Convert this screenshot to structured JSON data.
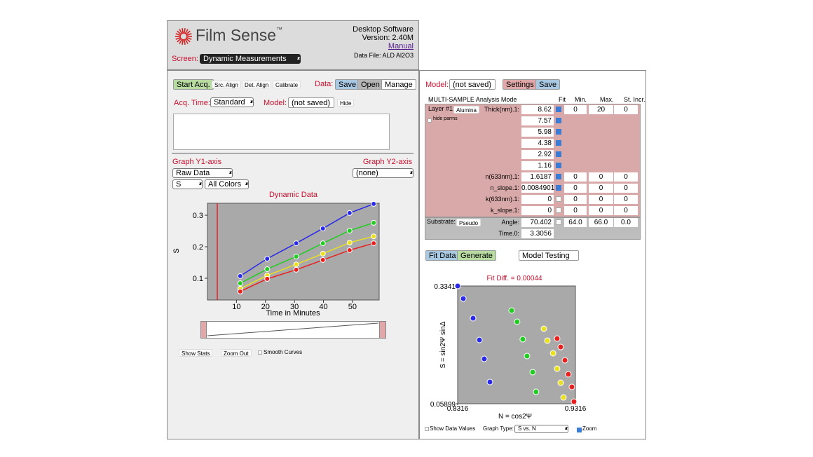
{
  "header": {
    "brand": "Film Sense",
    "trademark": "™",
    "screen_label": "Screen:",
    "screen_value": "Dynamic Measurements",
    "software": "Desktop Software",
    "version": "Version: 2.40M",
    "manual": "Manual",
    "data_file": "Data File: ALD Al2O3"
  },
  "acquisition": {
    "start": "Start Acq.",
    "src_align": "Src. Align",
    "det_align": "Det. Align",
    "calibrate": "Calibrate",
    "data_label": "Data:",
    "save": "Save",
    "open": "Open",
    "manage": "Manage",
    "acq_time_label": "Acq. Time:",
    "acq_time": "Standard",
    "model_label": "Model:",
    "model": "(not saved)",
    "hide": "Hide"
  },
  "graph_controls": {
    "y1_label": "Graph Y1-axis",
    "y2_label": "Graph Y2-axis",
    "y1": "Raw Data",
    "y2": "(none)",
    "quantity": "S",
    "colors": "All Colors"
  },
  "dynamic_chart": {
    "type": "line",
    "title": "Dynamic Data",
    "y_label": "S",
    "x_label": "Time in Minutes",
    "xlim": [
      0,
      59.2
    ],
    "ylim": [
      0.031,
      0.338
    ],
    "xticks": [
      10,
      20,
      30,
      40,
      50
    ],
    "yticks": [
      0.1,
      0.2,
      0.3
    ],
    "x": [
      11.3,
      20.6,
      30.6,
      39.8,
      49,
      57.3
    ],
    "series": [
      {
        "color": "#2a2ae8",
        "values": [
          0.107,
          0.162,
          0.211,
          0.258,
          0.307,
          0.336
        ]
      },
      {
        "color": "#22cc22",
        "values": [
          0.084,
          0.129,
          0.169,
          0.211,
          0.251,
          0.276
        ]
      },
      {
        "color": "#e8e020",
        "values": [
          0.067,
          0.109,
          0.144,
          0.178,
          0.213,
          0.233
        ]
      },
      {
        "color": "#e82020",
        "values": [
          0.058,
          0.098,
          0.127,
          0.158,
          0.189,
          0.211
        ]
      }
    ]
  },
  "left_options": {
    "show_stats": "Show Stats",
    "zoom_out": "Zoom Out",
    "smooth_curves": "Smooth Curves"
  },
  "model_panel": {
    "model_label": "Model:",
    "model": "(not saved)",
    "settings": "Settings",
    "save": "Save",
    "mode": "MULTI-SAMPLE Analysis Mode",
    "columns": [
      "Fit",
      "Min.",
      "Max.",
      "St. Incr."
    ],
    "layer_label": "Layer #1:",
    "layer_material": "Alumina",
    "hide_parms": "hide parms",
    "parameters": [
      {
        "label": "Thick(nm).1:",
        "value": "8.62",
        "fit": true,
        "min": "0",
        "max": "20",
        "step": "0"
      },
      {
        "value": "7.57",
        "fit": true
      },
      {
        "value": "5.98",
        "fit": true
      },
      {
        "value": "4.38",
        "fit": true
      },
      {
        "value": "2.92",
        "fit": true
      },
      {
        "value": "1.16",
        "fit": true
      },
      {
        "label": "n(633nm).1:",
        "value": "1.6187",
        "fit": true,
        "min": "0",
        "max": "0",
        "step": "0"
      },
      {
        "label": "n_slope.1:",
        "value": "0.0084901",
        "fit": true,
        "min": "0",
        "max": "0",
        "step": "0"
      },
      {
        "label": "k(633nm).1:",
        "value": "0",
        "fit": false,
        "min": "0",
        "max": "0",
        "step": "0"
      },
      {
        "label": "k_slope.1:",
        "value": "0",
        "fit": false,
        "min": "0",
        "max": "0",
        "step": "0"
      }
    ],
    "substrate_label": "Substrate:",
    "substrate": "Pseudo",
    "substrate_parameters": [
      {
        "label": "Angle:",
        "value": "70.402",
        "fit": false,
        "min": "64.0",
        "max": "66.0",
        "step": "0.0"
      },
      {
        "label": "Time.0:",
        "value": "3.3056"
      }
    ],
    "fit_data": "Fit Data",
    "generate": "Generate",
    "model_testing": "Model Testing"
  },
  "fit_chart": {
    "type": "scatter",
    "title": "Fit Diff. = 0.00044",
    "x_label": "N = cos2Ψ",
    "y_label": "S = sin2Ψ sinΔ",
    "xlim": [
      0.8316,
      0.9316
    ],
    "ylim": [
      0.05899,
      0.3341
    ],
    "xticks": [
      0.8316,
      0.9316
    ],
    "yticks": [
      0.05899,
      0.3341
    ],
    "series": [
      {
        "color": "#2a2ae8",
        "x": [
          0.8316,
          0.8364,
          0.8447,
          0.8501,
          0.8542,
          0.859
        ],
        "values": [
          0.3341,
          0.3046,
          0.2588,
          0.208,
          0.1638,
          0.1098
        ]
      },
      {
        "color": "#22cc22",
        "x": [
          0.8774,
          0.8821,
          0.8869,
          0.8905,
          0.8953,
          0.8982
        ],
        "values": [
          0.2768,
          0.2506,
          0.2096,
          0.1704,
          0.1327,
          0.0868
        ]
      },
      {
        "color": "#e8e020",
        "x": [
          0.9048,
          0.9078,
          0.9126,
          0.9161,
          0.9191,
          0.9215
        ],
        "values": [
          0.2342,
          0.2064,
          0.1769,
          0.1409,
          0.1081,
          0.0737
        ]
      },
      {
        "color": "#e82020",
        "x": [
          0.9161,
          0.9191,
          0.9227,
          0.9256,
          0.9286,
          0.9304
        ],
        "values": [
          0.2113,
          0.1916,
          0.1605,
          0.1278,
          0.0983,
          0.0639
        ]
      }
    ]
  },
  "fit_options": {
    "show_values": "Show Data Values",
    "graph_type_label": "Graph Type:",
    "graph_type": "S vs. N",
    "zoom": "Zoom",
    "zoom_checked": true
  }
}
